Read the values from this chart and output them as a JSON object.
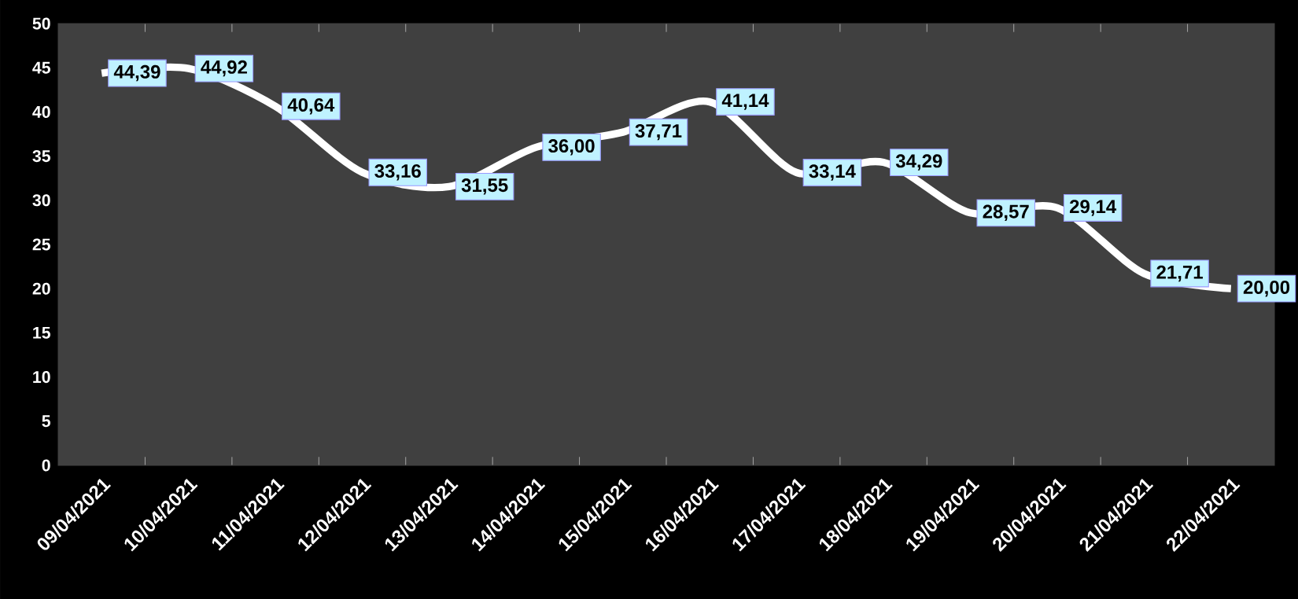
{
  "chart_data": {
    "type": "line",
    "categories": [
      "09/04/2021",
      "10/04/2021",
      "11/04/2021",
      "12/04/2021",
      "13/04/2021",
      "14/04/2021",
      "15/04/2021",
      "16/04/2021",
      "17/04/2021",
      "18/04/2021",
      "19/04/2021",
      "20/04/2021",
      "21/04/2021",
      "22/04/2021"
    ],
    "series": [
      {
        "color": "#ffffff",
        "values": [
          44.39,
          44.92,
          40.64,
          33.16,
          31.55,
          36.0,
          37.71,
          41.14,
          33.14,
          34.29,
          28.57,
          29.14,
          21.71,
          20.0
        ],
        "value_labels": [
          "44,39",
          "44,92",
          "40,64",
          "33,16",
          "31,55",
          "36,00",
          "37,71",
          "41,14",
          "33,14",
          "34,29",
          "28,57",
          "29,14",
          "21,71",
          "20,00"
        ]
      }
    ],
    "ylim": [
      0,
      50
    ],
    "yticks": [
      0,
      5,
      10,
      15,
      20,
      25,
      30,
      35,
      40,
      45,
      50
    ],
    "grid": false,
    "marker": "none",
    "line_style": "solid"
  }
}
